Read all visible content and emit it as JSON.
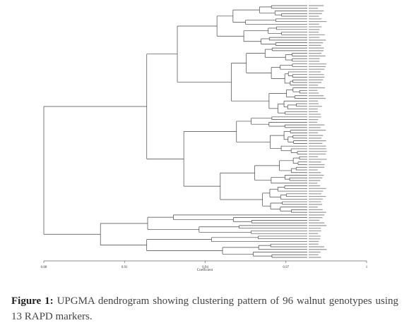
{
  "figure": {
    "axis": {
      "label": "Coefficient",
      "ticks": [
        0.88,
        0.91,
        0.94,
        0.97,
        1.0
      ]
    },
    "caption": {
      "label": "Figure 1:",
      "text": "UPGMA dendrogram showing clustering pattern of 96 walnut genotypes using 13 RAPD markers."
    }
  }
}
